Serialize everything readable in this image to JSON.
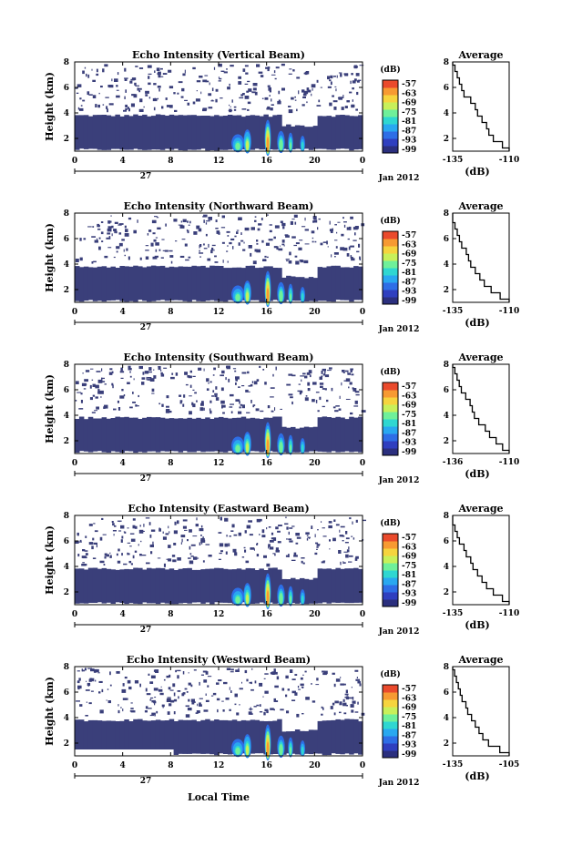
{
  "figure": {
    "xlabel": "Local Time",
    "date_label": "Jan 2012",
    "day_label": "27",
    "height_label": "Height (km)",
    "colorbar_unit": "(dB)",
    "colorbar_ticks": [
      "-57",
      "-63",
      "-69",
      "-75",
      "-81",
      "-87",
      "-93",
      "-99"
    ],
    "colors": {
      "background_echo": "#3a3f7a",
      "colormap": [
        "#2b2f7e",
        "#2f3fbf",
        "#2e6ee6",
        "#29a8f0",
        "#2fd7d1",
        "#6ff09a",
        "#c8f05a",
        "#f6d43e",
        "#f79a32",
        "#ea4a2c"
      ]
    }
  },
  "chart_data": [
    {
      "type": "heatmap",
      "title": "Echo Intensity (Vertical Beam)",
      "ylabel": "Height (km)",
      "x_ticks": [
        "0",
        "4",
        "8",
        "12",
        "16",
        "20",
        "0"
      ],
      "y_ticks": [
        "2",
        "4",
        "6",
        "8"
      ],
      "xlim": [
        0,
        24
      ],
      "ylim": [
        1,
        8
      ],
      "colorbar_range_db": [
        -99,
        -57
      ],
      "avg_profile": {
        "title": "Average",
        "xlabel": "(dB)",
        "x_ticks": [
          "-135",
          "-110"
        ],
        "y_ticks": [
          "2",
          "4",
          "6",
          "8"
        ],
        "xlim": [
          -135,
          -110
        ],
        "ylim": [
          1,
          8
        ],
        "height_km": [
          1.0,
          1.5,
          2.0,
          2.5,
          3.0,
          3.5,
          4.0,
          4.5,
          5.0,
          5.5,
          6.0,
          6.5,
          7.0,
          7.5,
          8.0
        ],
        "value_db": [
          -110,
          -113,
          -117,
          -119,
          -120,
          -122,
          -124,
          -125,
          -127,
          -130,
          -131,
          -132,
          -133,
          -134,
          -135
        ]
      }
    },
    {
      "type": "heatmap",
      "title": "Echo Intensity (Northward Beam)",
      "ylabel": "Height (km)",
      "x_ticks": [
        "0",
        "4",
        "8",
        "12",
        "16",
        "20",
        "0"
      ],
      "y_ticks": [
        "2",
        "4",
        "6",
        "8"
      ],
      "xlim": [
        0,
        24
      ],
      "ylim": [
        1,
        8
      ],
      "colorbar_range_db": [
        -99,
        -57
      ],
      "avg_profile": {
        "title": "Average",
        "xlabel": "(dB)",
        "x_ticks": [
          "-135",
          "-110"
        ],
        "y_ticks": [
          "2",
          "4",
          "6",
          "8"
        ],
        "xlim": [
          -135,
          -110
        ],
        "ylim": [
          1,
          8
        ],
        "height_km": [
          1.0,
          1.5,
          2.0,
          2.5,
          3.0,
          3.5,
          4.0,
          4.5,
          5.0,
          5.5,
          6.0,
          6.5,
          7.0,
          7.5,
          8.0
        ],
        "value_db": [
          -110,
          -114,
          -118,
          -121,
          -123,
          -125,
          -127,
          -128,
          -129,
          -131,
          -132,
          -133,
          -134,
          -135,
          -135
        ]
      }
    },
    {
      "type": "heatmap",
      "title": "Echo Intensity (Southward Beam)",
      "ylabel": "Height (km)",
      "x_ticks": [
        "0",
        "4",
        "8",
        "12",
        "16",
        "20",
        "0"
      ],
      "y_ticks": [
        "2",
        "4",
        "6",
        "8"
      ],
      "xlim": [
        0,
        24
      ],
      "ylim": [
        1,
        8
      ],
      "colorbar_range_db": [
        -99,
        -57
      ],
      "avg_profile": {
        "title": "Average",
        "xlabel": "(dB)",
        "x_ticks": [
          "-136",
          "-110"
        ],
        "y_ticks": [
          "2",
          "4",
          "6",
          "8"
        ],
        "xlim": [
          -136,
          -110
        ],
        "ylim": [
          1,
          8
        ],
        "height_km": [
          1.0,
          1.5,
          2.0,
          2.5,
          3.0,
          3.5,
          4.0,
          4.5,
          5.0,
          5.5,
          6.0,
          6.5,
          7.0,
          7.5,
          8.0
        ],
        "value_db": [
          -110,
          -113,
          -116,
          -119,
          -121,
          -124,
          -126,
          -127,
          -128,
          -130,
          -132,
          -133,
          -134,
          -135,
          -136
        ]
      }
    },
    {
      "type": "heatmap",
      "title": "Echo Intensity (Eastward Beam)",
      "ylabel": "Height (km)",
      "x_ticks": [
        "0",
        "4",
        "8",
        "12",
        "16",
        "20",
        "0"
      ],
      "y_ticks": [
        "2",
        "4",
        "6",
        "8"
      ],
      "xlim": [
        0,
        24
      ],
      "ylim": [
        1,
        8
      ],
      "colorbar_range_db": [
        -99,
        -57
      ],
      "avg_profile": {
        "title": "Average",
        "xlabel": "(dB)",
        "x_ticks": [
          "-135",
          "-110"
        ],
        "y_ticks": [
          "2",
          "4",
          "6",
          "8"
        ],
        "xlim": [
          -135,
          -110
        ],
        "ylim": [
          1,
          8
        ],
        "height_km": [
          1.0,
          1.5,
          2.0,
          2.5,
          3.0,
          3.5,
          4.0,
          4.5,
          5.0,
          5.5,
          6.0,
          6.5,
          7.0,
          7.5,
          8.0
        ],
        "value_db": [
          -110,
          -113,
          -117,
          -120,
          -122,
          -124,
          -126,
          -127,
          -129,
          -130,
          -132,
          -133,
          -134,
          -135,
          -135
        ]
      }
    },
    {
      "type": "heatmap",
      "title": "Echo Intensity (Westward Beam)",
      "ylabel": "Height (km)",
      "x_ticks": [
        "0",
        "4",
        "8",
        "12",
        "16",
        "20",
        "0"
      ],
      "y_ticks": [
        "2",
        "4",
        "6",
        "8"
      ],
      "xlim": [
        0,
        24
      ],
      "ylim": [
        1,
        8
      ],
      "colorbar_range_db": [
        -99,
        -57
      ],
      "avg_profile": {
        "title": "Average",
        "xlabel": "(dB)",
        "x_ticks": [
          "-135",
          "-105"
        ],
        "y_ticks": [
          "2",
          "4",
          "6",
          "8"
        ],
        "xlim": [
          -135,
          -105
        ],
        "ylim": [
          1,
          8
        ],
        "height_km": [
          1.0,
          1.5,
          2.0,
          2.5,
          3.0,
          3.5,
          4.0,
          4.5,
          5.0,
          5.5,
          6.0,
          6.5,
          7.0,
          7.5,
          8.0
        ],
        "value_db": [
          -105,
          -110,
          -116,
          -119,
          -121,
          -123,
          -125,
          -127,
          -128,
          -130,
          -131,
          -132,
          -133,
          -134,
          -135
        ]
      }
    }
  ]
}
